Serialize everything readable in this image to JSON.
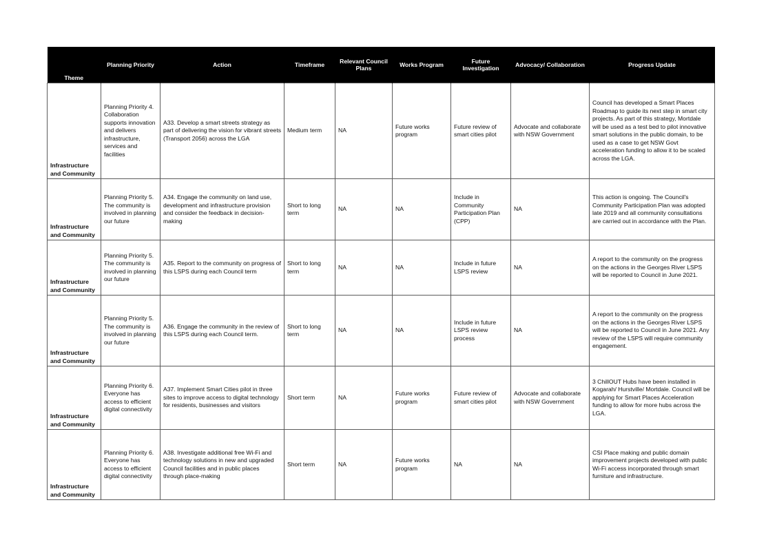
{
  "table": {
    "headers": {
      "theme": "Theme",
      "priority": "Planning Priority",
      "action": "Action",
      "timeframe": "Timeframe",
      "plans": "Relevant Council Plans",
      "works": "Works Program",
      "future": "Future Investigation",
      "advocacy": "Advocacy/ Collaboration",
      "update": "Progress Update"
    },
    "rows": [
      {
        "theme": "Infrastructure and Community",
        "priority": "Planning Priority 4. Collaboration supports innovation and delivers infrastructure, services and facilities",
        "action": "A33. Develop a smart streets strategy as part of delivering the vision for vibrant streets (Transport 2056) across the LGA",
        "timeframe": "Medium term",
        "plans": "NA",
        "works": "Future works program",
        "future": "Future review of smart cities pilot",
        "advocacy": "Advocate and collaborate with NSW Government",
        "update": "Council has developed a Smart Places Roadmap to guide its next step in smart city projects. As part of this strategy, Mortdale will be used as a test bed to pilot innovative smart solutions in the public domain, to be used as a case to get NSW Govt acceleration funding to allow it to be scaled across the LGA."
      },
      {
        "theme": "Infrastructure and Community",
        "priority": "Planning Priority 5. The community is involved in planning our future",
        "action": "A34. Engage the community on land use, development and infrastructure provision and consider the feedback in decision-making",
        "timeframe": "Short to long term",
        "plans": "NA",
        "works": "NA",
        "future": "Include in Community Participation Plan (CPP)",
        "advocacy": "NA",
        "update": "This action is ongoing. The Council's Community Participation Plan was adopted late 2019 and all community consultations are carried out in accordance with the Plan."
      },
      {
        "theme": "Infrastructure and Community",
        "priority": "Planning Priority 5. The community is involved in planning our future",
        "action": "A35. Report to the community on progress of this LSPS during each Council term",
        "timeframe": "Short to long term",
        "plans": "NA",
        "works": "NA",
        "future": "Include in future LSPS review",
        "advocacy": "NA",
        "update": "A report to the community on the progress on the actions in the Georges River LSPS will be reported to Council in June 2021."
      },
      {
        "theme": "Infrastructure and Community",
        "priority": "Planning Priority 5. The community is involved in planning our future",
        "action": "A36. Engage the community in the review of this LSPS during each Council term.",
        "timeframe": "Short to long term",
        "plans": "NA",
        "works": "NA",
        "future": "Include in future LSPS review process",
        "advocacy": "NA",
        "update": "A report to the community on the progress on the actions in the Georges River LSPS will be reported to Council in June 2021. Any review of the LSPS will require community engagement."
      },
      {
        "theme": "Infrastructure and Community",
        "priority": "Planning Priority 6. Everyone has access to efficient digital connectivity",
        "action": "A37. Implement Smart Cities pilot in three sites to improve access to digital technology for residents, businesses and visitors",
        "timeframe": "Short term",
        "plans": "NA",
        "works": "Future works program",
        "future": "Future review of smart cities pilot",
        "advocacy": "Advocate and collaborate with NSW Government",
        "update": "3 ChillOUT Hubs have been installed in Kogarah/ Hurstville/ Mortdale. Council will be applying for Smart Places Acceleration funding to allow for more hubs across the LGA."
      },
      {
        "theme": "Infrastructure and Community",
        "priority": "Planning Priority 6. Everyone has access to efficient digital connectivity",
        "action": "A38. Investigate additional free Wi-Fi and technology solutions in new and upgraded Council facilities and in public places through place-making",
        "timeframe": "Short term",
        "plans": "NA",
        "works": "Future works program",
        "future": "NA",
        "advocacy": "NA",
        "update": "CSI Place making and public domain improvement projects developed with public Wi-Fi access incorporated through smart furniture and infrastructure."
      }
    ]
  }
}
